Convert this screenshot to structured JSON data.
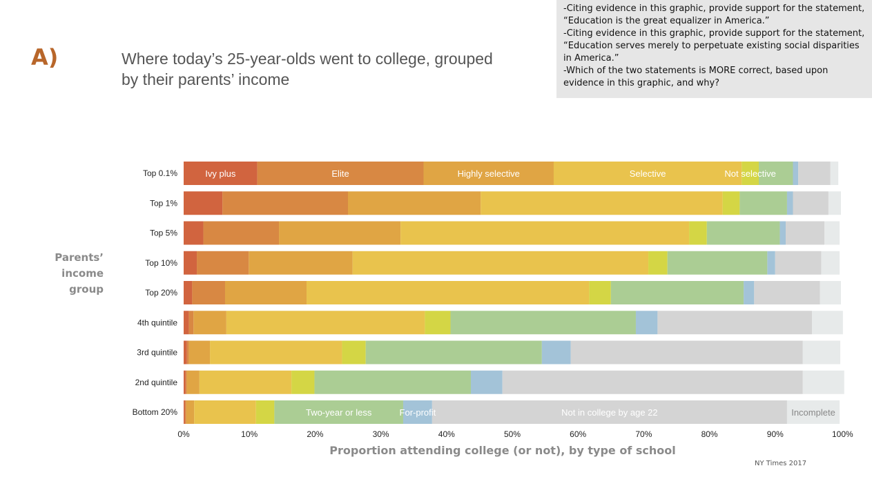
{
  "section_label": "A)",
  "chart_title_line1": "Where today’s 25-year-olds went to college, grouped",
  "chart_title_line2": "by their parents’ income",
  "questions": [
    "-Citing evidence in this graphic, provide support for the statement, “Education is the great equalizer in America.”",
    "-Citing evidence in this graphic, provide support for the statement, “Education serves merely to perpetuate existing social disparities in America.”",
    "-Which of the two statements is MORE correct, based upon evidence in this graphic, and why?"
  ],
  "source": "NY Times 2017",
  "chart_data": {
    "type": "bar",
    "orientation": "horizontal",
    "stacked": true,
    "title": "Where today’s 25-year-olds went to college, grouped by their parents’ income",
    "xlabel": "Proportion attending college (or not), by type of school",
    "ylabel_lines": [
      "Parents’",
      "income",
      "group"
    ],
    "xlim": [
      0,
      100
    ],
    "x_ticks": [
      "0%",
      "10%",
      "20%",
      "30%",
      "40%",
      "50%",
      "60%",
      "70%",
      "80%",
      "90%",
      "100%"
    ],
    "categories": [
      "Top 0.1%",
      "Top 1%",
      "Top 5%",
      "Top 10%",
      "Top 20%",
      "4th quintile",
      "3rd quintile",
      "2nd quintile",
      "Bottom 20%"
    ],
    "series": [
      {
        "name": "Ivy plus",
        "color": "#d1643f",
        "label_row": 0,
        "values": [
          11.2,
          5.9,
          3.0,
          2.0,
          1.3,
          0.8,
          0.5,
          0.3,
          0.2
        ]
      },
      {
        "name": "Elite",
        "color": "#d88843",
        "label_row": 0,
        "values": [
          25.3,
          19.1,
          11.5,
          7.9,
          5.0,
          0.7,
          0.3,
          0.2,
          0.2
        ]
      },
      {
        "name": "Highly selective",
        "color": "#e0a544",
        "label_row": 0,
        "values": [
          19.8,
          20.2,
          18.5,
          15.8,
          12.4,
          5.0,
          3.2,
          1.9,
          1.2
        ]
      },
      {
        "name": "Selective",
        "color": "#e9c34d",
        "label_row": 0,
        "values": [
          28.6,
          36.8,
          43.9,
          45.0,
          43.0,
          30.2,
          20.1,
          14.0,
          9.4
        ]
      },
      {
        "name": "Not selective",
        "color": "#d4d645",
        "label_row": 0,
        "values": [
          2.6,
          2.6,
          2.7,
          2.9,
          3.3,
          3.9,
          3.6,
          3.5,
          2.8
        ]
      },
      {
        "name": "Two-year or less",
        "color": "#abcd94",
        "label_row": 8,
        "values": [
          5.2,
          7.2,
          11.1,
          15.2,
          20.2,
          28.2,
          26.8,
          23.8,
          19.6
        ]
      },
      {
        "name": "For-profit",
        "color": "#a3c3d8",
        "label_row": 8,
        "values": [
          0.8,
          0.9,
          0.9,
          1.2,
          1.6,
          3.3,
          4.4,
          4.8,
          4.4
        ]
      },
      {
        "name": "Not in college by age 22",
        "color": "#d4d4d4",
        "label_row": 8,
        "values": [
          4.9,
          5.4,
          5.9,
          7.0,
          10.0,
          23.5,
          35.3,
          45.7,
          54.0
        ]
      },
      {
        "name": "Incomplete",
        "color": "#e7eaea",
        "label_row": 8,
        "values": [
          1.2,
          1.9,
          2.3,
          2.8,
          3.2,
          4.7,
          5.7,
          6.3,
          8.0
        ]
      }
    ]
  }
}
